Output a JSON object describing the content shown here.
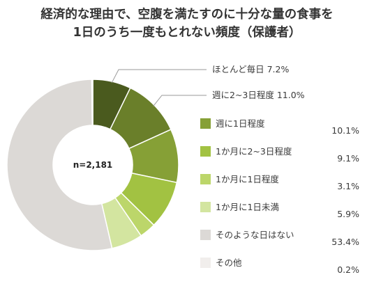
{
  "chart_data": {
    "type": "pie",
    "title_lines": [
      "経済的な理由で、空腹を満たすのに十分な量の食事を",
      "1日のうち一度もとれない頻度（保護者）"
    ],
    "center_label": "n=2,181",
    "slices": [
      {
        "label": "ほとんど毎日",
        "value": 7.2,
        "value_text": "7.2%",
        "color": "#4a5a1e"
      },
      {
        "label": "週に2~3日程度",
        "value": 11.0,
        "value_text": "11.0%",
        "color": "#6a7f2a"
      },
      {
        "label": "週に1日程度",
        "value": 10.1,
        "value_text": "10.1%",
        "color": "#86a036"
      },
      {
        "label": "1か月に2~3日程度",
        "value": 9.1,
        "value_text": "9.1%",
        "color": "#a2c242"
      },
      {
        "label": "1か月に1日程度",
        "value": 3.1,
        "value_text": "3.1%",
        "color": "#bcd66a"
      },
      {
        "label": "1か月に1日未満",
        "value": 5.9,
        "value_text": "5.9%",
        "color": "#d3e5a0"
      },
      {
        "label": "そのような日はない",
        "value": 53.4,
        "value_text": "53.4%",
        "color": "#dcd9d6"
      },
      {
        "label": "その他",
        "value": 0.2,
        "value_text": "0.2%",
        "color": "#f1eeec"
      }
    ]
  }
}
